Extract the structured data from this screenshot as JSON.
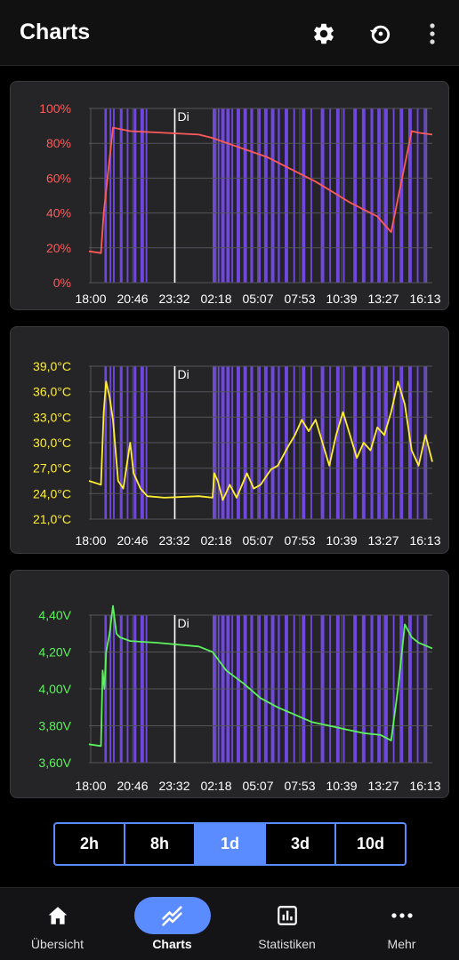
{
  "app": {
    "title": "Charts"
  },
  "toolbar": {
    "settings_icon": "gear-icon",
    "history_icon": "restore-icon",
    "menu_icon": "more-vert-icon"
  },
  "charts": [
    {
      "id": "soc",
      "color": "#ff5a5a",
      "ticks": [
        "100%",
        "80%",
        "60%",
        "40%",
        "20%",
        "0%"
      ],
      "x_labels": [
        "18:00",
        "20:46",
        "23:32",
        "02:18",
        "05:07",
        "07:53",
        "10:39",
        "13:27",
        "16:13"
      ],
      "marker": "Di"
    },
    {
      "id": "temp",
      "color": "#ffee33",
      "ticks": [
        "39,0°C",
        "36,0°C",
        "33,0°C",
        "30,0°C",
        "27,0°C",
        "24,0°C",
        "21,0°C"
      ],
      "x_labels": [
        "18:00",
        "20:46",
        "23:32",
        "02:18",
        "05:07",
        "07:53",
        "10:39",
        "13:27",
        "16:13"
      ],
      "marker": "Di"
    },
    {
      "id": "volt",
      "color": "#5cf25c",
      "ticks": [
        "4,40V",
        "4,20V",
        "4,00V",
        "3,80V",
        "3,60V"
      ],
      "x_labels": [
        "18:00",
        "20:46",
        "23:32",
        "02:18",
        "05:07",
        "07:53",
        "10:39",
        "13:27",
        "16:13"
      ],
      "marker": "Di"
    }
  ],
  "chart_data": [
    {
      "type": "line",
      "ylim": [
        0,
        100
      ],
      "x_range": [
        0,
        1
      ],
      "x": [
        0,
        0.035,
        0.043,
        0.07,
        0.12,
        0.32,
        0.36,
        0.52,
        0.66,
        0.76,
        0.84,
        0.88,
        0.94,
        0.96,
        1.0
      ],
      "values": [
        18,
        17,
        40,
        89,
        87,
        85,
        83,
        72,
        58,
        46,
        38,
        29,
        87,
        86,
        85
      ],
      "bands": [
        [
          0.045,
          0.052
        ],
        [
          0.06,
          0.065
        ],
        [
          0.07,
          0.075
        ],
        [
          0.09,
          0.098
        ],
        [
          0.11,
          0.115
        ],
        [
          0.13,
          0.138
        ],
        [
          0.15,
          0.16
        ],
        [
          0.165,
          0.17
        ],
        [
          0.36,
          0.37
        ],
        [
          0.375,
          0.38
        ],
        [
          0.385,
          0.395
        ],
        [
          0.4,
          0.41
        ],
        [
          0.415,
          0.42
        ],
        [
          0.43,
          0.44
        ],
        [
          0.45,
          0.46
        ],
        [
          0.47,
          0.478
        ],
        [
          0.49,
          0.5
        ],
        [
          0.51,
          0.52
        ],
        [
          0.53,
          0.54
        ],
        [
          0.55,
          0.556
        ],
        [
          0.57,
          0.58
        ],
        [
          0.595,
          0.6
        ],
        [
          0.62,
          0.63
        ],
        [
          0.645,
          0.65
        ],
        [
          0.675,
          0.685
        ],
        [
          0.7,
          0.705
        ],
        [
          0.72,
          0.73
        ],
        [
          0.74,
          0.745
        ],
        [
          0.77,
          0.78
        ],
        [
          0.795,
          0.805
        ],
        [
          0.82,
          0.828
        ],
        [
          0.84,
          0.85
        ],
        [
          0.86,
          0.87
        ],
        [
          0.885,
          0.89
        ],
        [
          0.905,
          0.915
        ],
        [
          0.93,
          0.94
        ],
        [
          0.955,
          0.96
        ],
        [
          0.975,
          0.985
        ]
      ]
    },
    {
      "type": "line",
      "ylim": [
        20,
        40
      ],
      "x_range": [
        0,
        1
      ],
      "x": [
        0,
        0.035,
        0.043,
        0.05,
        0.06,
        0.07,
        0.085,
        0.1,
        0.12,
        0.13,
        0.15,
        0.17,
        0.22,
        0.32,
        0.36,
        0.365,
        0.375,
        0.39,
        0.41,
        0.43,
        0.46,
        0.48,
        0.5,
        0.53,
        0.55,
        0.58,
        0.6,
        0.62,
        0.64,
        0.66,
        0.68,
        0.7,
        0.72,
        0.74,
        0.76,
        0.78,
        0.8,
        0.82,
        0.84,
        0.86,
        0.88,
        0.9,
        0.92,
        0.94,
        0.96,
        0.98,
        1.0
      ],
      "values": [
        25,
        24.5,
        34,
        38,
        36,
        33,
        25,
        24,
        30,
        26,
        24,
        23,
        22.8,
        23,
        22.8,
        26,
        25,
        22.5,
        24.5,
        22.8,
        26,
        24,
        24.5,
        26.5,
        27,
        29.5,
        31,
        33,
        31.5,
        33,
        30,
        27,
        31,
        34,
        31,
        28,
        30,
        29,
        32,
        31,
        34,
        38,
        35,
        29,
        27,
        31,
        27.5
      ]
    },
    {
      "type": "line",
      "ylim": [
        3.6,
        4.4
      ],
      "x_range": [
        0,
        1
      ],
      "x": [
        0,
        0.035,
        0.04,
        0.045,
        0.05,
        0.06,
        0.07,
        0.08,
        0.09,
        0.12,
        0.2,
        0.32,
        0.36,
        0.4,
        0.45,
        0.5,
        0.55,
        0.6,
        0.65,
        0.7,
        0.75,
        0.8,
        0.85,
        0.88,
        0.9,
        0.92,
        0.94,
        0.96,
        1.0
      ],
      "values": [
        3.7,
        3.69,
        4.1,
        4.0,
        4.2,
        4.3,
        4.45,
        4.3,
        4.28,
        4.26,
        4.25,
        4.23,
        4.2,
        4.1,
        4.03,
        3.95,
        3.9,
        3.86,
        3.82,
        3.8,
        3.78,
        3.76,
        3.75,
        3.72,
        4.0,
        4.35,
        4.28,
        4.25,
        4.22
      ]
    }
  ],
  "range_selector": {
    "options": [
      "2h",
      "8h",
      "1d",
      "3d",
      "10d"
    ],
    "selected": "1d"
  },
  "nav": {
    "items": [
      {
        "label": "Übersicht",
        "icon": "home-icon"
      },
      {
        "label": "Charts",
        "icon": "chart-icon"
      },
      {
        "label": "Statistiken",
        "icon": "stats-icon"
      },
      {
        "label": "Mehr",
        "icon": "more-horiz-icon"
      }
    ],
    "active": "Charts"
  }
}
